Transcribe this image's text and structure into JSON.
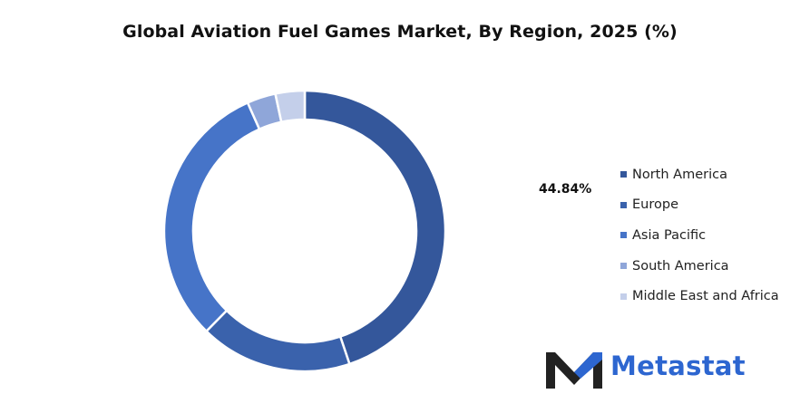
{
  "colors": {
    "North America": "#34579b",
    "Europe": "#3a62ac",
    "Asia Pacific": "#4674c8",
    "South America": "#8fa6d9",
    "Middle East and Africa": "#c4cfea",
    "brand": "#2d66d0",
    "brand_dark": "#222222"
  },
  "chart_data": {
    "type": "pie",
    "donut": true,
    "title": "Global Aviation Fuel Games Market, By Region, 2025 (%)",
    "categories": [
      "North America",
      "Europe",
      "Asia Pacific",
      "South America",
      "Middle East and Africa"
    ],
    "values": [
      44.84,
      17.5,
      31.0,
      3.3,
      3.36
    ],
    "data_labels": [
      "44.84%"
    ],
    "legend_position": "right"
  },
  "logo": {
    "text": "Metastat",
    "icon": "metastat-m-logo-icon"
  }
}
